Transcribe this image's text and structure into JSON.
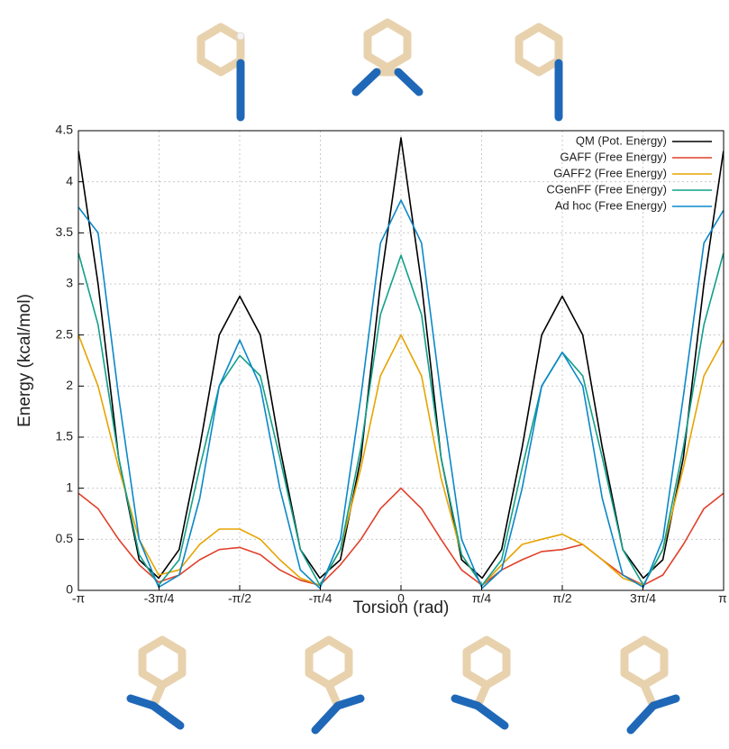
{
  "chart_data": {
    "type": "line",
    "x_label": "Torsion (rad)",
    "y_label": "Energy (kcal/mol)",
    "x": [
      -3.14,
      -2.95,
      -2.75,
      -2.55,
      -2.36,
      -2.16,
      -1.96,
      -1.77,
      -1.57,
      -1.37,
      -1.18,
      -0.98,
      -0.79,
      -0.59,
      -0.39,
      -0.2,
      0,
      0.2,
      0.39,
      0.59,
      0.79,
      0.98,
      1.18,
      1.37,
      1.57,
      1.77,
      1.96,
      2.16,
      2.36,
      2.55,
      2.75,
      2.95,
      3.14
    ],
    "series": [
      {
        "name": "QM (Pot. Energy)",
        "color": "#000000",
        "values": [
          4.3,
          3.0,
          1.3,
          0.3,
          0.12,
          0.4,
          1.4,
          2.5,
          2.88,
          2.5,
          1.4,
          0.4,
          0.12,
          0.3,
          1.3,
          3.0,
          4.43,
          3.0,
          1.3,
          0.3,
          0.12,
          0.4,
          1.4,
          2.5,
          2.88,
          2.5,
          1.4,
          0.4,
          0.12,
          0.3,
          1.3,
          3.0,
          4.3
        ]
      },
      {
        "name": "GAFF (Free Energy)",
        "color": "#e0402a",
        "values": [
          0.95,
          0.8,
          0.5,
          0.25,
          0.08,
          0.15,
          0.3,
          0.4,
          0.42,
          0.35,
          0.2,
          0.1,
          0.05,
          0.25,
          0.5,
          0.8,
          1.0,
          0.8,
          0.5,
          0.2,
          0.05,
          0.2,
          0.3,
          0.38,
          0.4,
          0.45,
          0.3,
          0.15,
          0.05,
          0.15,
          0.45,
          0.8,
          0.95
        ]
      },
      {
        "name": "GAFF2 (Free Energy)",
        "color": "#e6a400",
        "values": [
          2.5,
          2.0,
          1.2,
          0.5,
          0.15,
          0.2,
          0.45,
          0.6,
          0.6,
          0.5,
          0.3,
          0.12,
          0.05,
          0.4,
          1.2,
          2.1,
          2.5,
          2.1,
          1.1,
          0.35,
          0.05,
          0.25,
          0.45,
          0.5,
          0.55,
          0.45,
          0.3,
          0.12,
          0.05,
          0.4,
          1.2,
          2.1,
          2.45
        ]
      },
      {
        "name": "CGenFF (Free Energy)",
        "color": "#11a08a",
        "values": [
          3.3,
          2.6,
          1.3,
          0.35,
          0.05,
          0.3,
          1.2,
          2.0,
          2.3,
          2.1,
          1.3,
          0.4,
          0.05,
          0.4,
          1.4,
          2.7,
          3.28,
          2.7,
          1.3,
          0.35,
          0.05,
          0.3,
          1.2,
          2.0,
          2.33,
          2.1,
          1.3,
          0.4,
          0.05,
          0.4,
          1.4,
          2.6,
          3.3
        ]
      },
      {
        "name": "Ad hoc (Free Energy)",
        "color": "#0a88c8",
        "values": [
          3.75,
          3.5,
          1.9,
          0.5,
          0.03,
          0.15,
          0.9,
          2.0,
          2.45,
          2.0,
          1.0,
          0.2,
          0.02,
          0.5,
          1.9,
          3.4,
          3.82,
          3.4,
          1.9,
          0.5,
          0.02,
          0.2,
          1.0,
          2.0,
          2.33,
          2.0,
          0.9,
          0.15,
          0.03,
          0.5,
          1.9,
          3.4,
          3.72
        ]
      }
    ],
    "xlim": [
      -3.1416,
      3.1416
    ],
    "xticks": [
      {
        "value": -3.1416,
        "label": "-π"
      },
      {
        "value": -2.3562,
        "label": "-3π/4"
      },
      {
        "value": -1.5708,
        "label": "-π/2"
      },
      {
        "value": -0.7854,
        "label": "-π/4"
      },
      0,
      {
        "value": 0.7854,
        "label": "π/4"
      },
      {
        "value": 1.5708,
        "label": "π/2"
      },
      {
        "value": 2.3562,
        "label": "3π/4"
      },
      {
        "value": 3.1416,
        "label": "π"
      }
    ],
    "ylim": [
      0,
      4.5
    ],
    "yticks": [
      0,
      0.5,
      1,
      1.5,
      2,
      2.5,
      3,
      3.5,
      4,
      4.5
    ],
    "grid": true,
    "legend": "upper right"
  }
}
